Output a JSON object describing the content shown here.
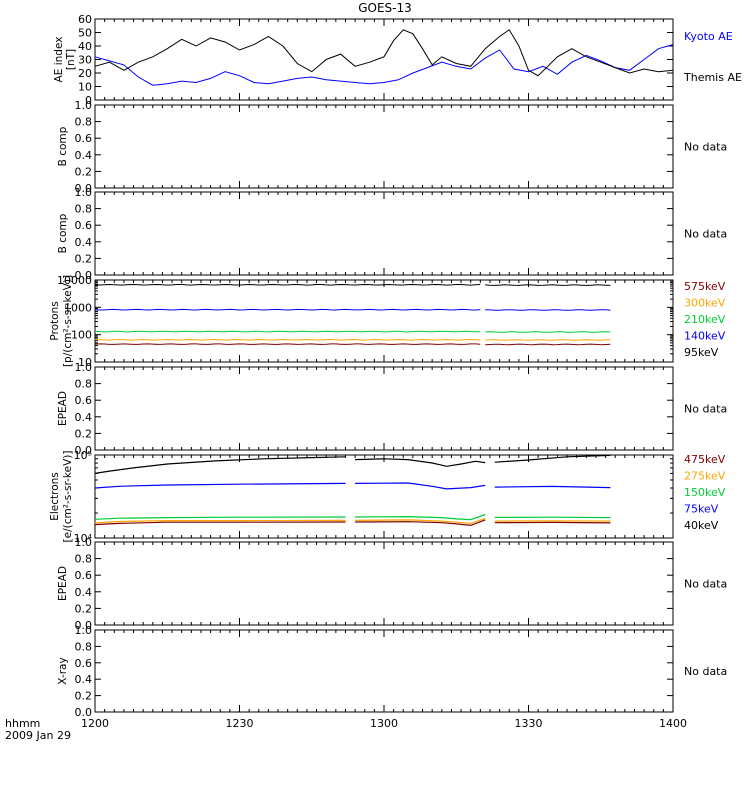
{
  "title": "GOES-13",
  "time_axis": {
    "label": "hhmm",
    "date": "2009 Jan 29",
    "ticks": [
      "1200",
      "1230",
      "1300",
      "1330",
      "1400"
    ]
  },
  "chart_data": [
    {
      "type": "line",
      "id": "ae",
      "ylabel": "AE index [nT]",
      "ylim": [
        0,
        60
      ],
      "yticks": [
        "0",
        "10",
        "20",
        "30",
        "40",
        "50",
        "60"
      ],
      "xlim": [
        0,
        120
      ],
      "series": [
        {
          "name": "Kyoto AE",
          "color": "#0000ff",
          "x": [
            0,
            3,
            6,
            9,
            12,
            15,
            18,
            21,
            24,
            27,
            30,
            33,
            36,
            39,
            42,
            45,
            48,
            51,
            54,
            57,
            60,
            63,
            66,
            69,
            72,
            75,
            78,
            81,
            84,
            87,
            90,
            93,
            96,
            99,
            102,
            105,
            108,
            111,
            114,
            117,
            120
          ],
          "y": [
            32,
            29,
            26,
            17,
            11,
            12,
            14,
            13,
            16,
            21,
            18,
            13,
            12,
            14,
            16,
            17,
            15,
            14,
            13,
            12,
            13,
            15,
            20,
            24,
            28,
            25,
            23,
            31,
            37,
            23,
            21,
            25,
            19,
            28,
            33,
            29,
            24,
            22,
            30,
            38,
            41
          ]
        },
        {
          "name": "Themis AE",
          "color": "#000000",
          "x": [
            0,
            3,
            6,
            9,
            12,
            15,
            18,
            21,
            24,
            27,
            30,
            33,
            36,
            39,
            42,
            45,
            48,
            51,
            54,
            57,
            60,
            62,
            64,
            66,
            68,
            70,
            72,
            75,
            78,
            81,
            84,
            86,
            88,
            90,
            92,
            94,
            96,
            99,
            102,
            105,
            108,
            111,
            114,
            117,
            120
          ],
          "y": [
            25,
            28,
            22,
            28,
            32,
            38,
            45,
            40,
            46,
            43,
            37,
            41,
            47,
            40,
            27,
            21,
            30,
            34,
            25,
            28,
            32,
            44,
            52,
            49,
            38,
            26,
            32,
            27,
            25,
            38,
            47,
            52,
            40,
            22,
            18,
            25,
            32,
            38,
            32,
            28,
            24,
            20,
            23,
            21,
            22
          ]
        }
      ]
    },
    {
      "type": "line",
      "id": "bcomp1",
      "ylabel": "B comp",
      "ylim": [
        0,
        1
      ],
      "yticks": [
        "0.0",
        "0.2",
        "0.4",
        "0.6",
        "0.8",
        "1.0"
      ],
      "status": "No data",
      "series": []
    },
    {
      "type": "line",
      "id": "bcomp2",
      "ylabel": "B comp",
      "ylim": [
        0,
        1
      ],
      "yticks": [
        "0.0",
        "0.2",
        "0.4",
        "0.6",
        "0.8",
        "1.0"
      ],
      "status": "No data",
      "series": []
    },
    {
      "type": "line",
      "id": "protons",
      "ylabel": "Protons [p/(cm²-s-sr-keV)]",
      "log_scale": true,
      "ylim": [
        10,
        10000
      ],
      "yticks": [
        "10",
        "100",
        "1000",
        "10000"
      ],
      "series": [
        {
          "name": "575keV",
          "color": "#800000",
          "segments": [
            [
              0,
              80,
              45
            ],
            [
              81,
              107,
              44
            ]
          ]
        },
        {
          "name": "300keV",
          "color": "#ffa500",
          "segments": [
            [
              0,
              80,
              65
            ],
            [
              81,
              107,
              64
            ]
          ]
        },
        {
          "name": "210keV",
          "color": "#00cc33",
          "segments": [
            [
              0,
              80,
              130
            ],
            [
              81,
              107,
              125
            ]
          ]
        },
        {
          "name": "140keV",
          "color": "#0000ff",
          "segments": [
            [
              0,
              80,
              820
            ],
            [
              81,
              107,
              800
            ]
          ]
        },
        {
          "name": "95keV",
          "color": "#000000",
          "segments": [
            [
              0,
              80,
              6700
            ],
            [
              81,
              107,
              6500
            ]
          ]
        }
      ]
    },
    {
      "type": "line",
      "id": "epead1",
      "ylabel": "EPEAD",
      "ylim": [
        0,
        1
      ],
      "yticks": [
        "0.0",
        "0.2",
        "0.4",
        "0.6",
        "0.8",
        "1.0"
      ],
      "status": "No data",
      "series": []
    },
    {
      "type": "line",
      "id": "electrons",
      "ylabel": "Electrons [e/(cm²-s-sr-keV)]",
      "log_scale": true,
      "ylim": [
        10000,
        100000
      ],
      "yticks": [
        "10⁴",
        "10⁵"
      ],
      "series": [
        {
          "name": "475keV",
          "color": "#800000",
          "segments": [
            [
              [
                0,
                14500
              ],
              [
                5,
                15000
              ],
              [
                15,
                15500
              ],
              [
                30,
                15500
              ],
              [
                52,
                15600
              ]
            ],
            [
              [
                54,
                15600
              ],
              [
                65,
                15700
              ],
              [
                72,
                15300
              ],
              [
                75,
                14800
              ],
              [
                78,
                14200
              ],
              [
                81,
                16500
              ]
            ],
            [
              [
                83,
                15300
              ],
              [
                95,
                15400
              ],
              [
                107,
                15200
              ]
            ]
          ]
        },
        {
          "name": "275keV",
          "color": "#ffa500",
          "segments": [
            [
              [
                0,
                15200
              ],
              [
                5,
                15800
              ],
              [
                15,
                16200
              ],
              [
                30,
                16200
              ],
              [
                52,
                16300
              ]
            ],
            [
              [
                54,
                16300
              ],
              [
                65,
                16500
              ],
              [
                72,
                16000
              ],
              [
                75,
                15500
              ],
              [
                78,
                15000
              ],
              [
                81,
                17200
              ]
            ],
            [
              [
                83,
                16000
              ],
              [
                95,
                16100
              ],
              [
                107,
                16000
              ]
            ]
          ]
        },
        {
          "name": "150keV",
          "color": "#00cc33",
          "segments": [
            [
              [
                0,
                16800
              ],
              [
                5,
                17300
              ],
              [
                15,
                17600
              ],
              [
                30,
                17800
              ],
              [
                52,
                17900
              ]
            ],
            [
              [
                54,
                17900
              ],
              [
                65,
                18100
              ],
              [
                72,
                17600
              ],
              [
                75,
                17000
              ],
              [
                78,
                16600
              ],
              [
                81,
                19200
              ]
            ],
            [
              [
                83,
                17700
              ],
              [
                95,
                17800
              ],
              [
                107,
                17600
              ]
            ]
          ]
        },
        {
          "name": "75keV",
          "color": "#0000ff",
          "segments": [
            [
              [
                0,
                40000
              ],
              [
                5,
                42000
              ],
              [
                15,
                43500
              ],
              [
                30,
                44500
              ],
              [
                52,
                45500
              ]
            ],
            [
              [
                54,
                45500
              ],
              [
                65,
                46000
              ],
              [
                70,
                42000
              ],
              [
                73,
                39000
              ],
              [
                78,
                40500
              ],
              [
                81,
                43000
              ]
            ],
            [
              [
                83,
                41000
              ],
              [
                95,
                41800
              ],
              [
                107,
                40500
              ]
            ]
          ]
        },
        {
          "name": "40keV",
          "color": "#000000",
          "segments": [
            [
              [
                0,
                60000
              ],
              [
                3,
                64000
              ],
              [
                8,
                70000
              ],
              [
                15,
                78000
              ],
              [
                25,
                85000
              ],
              [
                35,
                90000
              ],
              [
                45,
                93000
              ],
              [
                52,
                95000
              ]
            ],
            [
              [
                54,
                88000
              ],
              [
                60,
                90000
              ],
              [
                65,
                88000
              ],
              [
                70,
                80000
              ],
              [
                73,
                73000
              ],
              [
                76,
                78000
              ],
              [
                79,
                84000
              ],
              [
                81,
                81000
              ]
            ],
            [
              [
                83,
                82000
              ],
              [
                90,
                87000
              ],
              [
                98,
                95000
              ],
              [
                107,
                99000
              ]
            ]
          ]
        }
      ]
    },
    {
      "type": "line",
      "id": "epead2",
      "ylabel": "EPEAD",
      "ylim": [
        0,
        1
      ],
      "yticks": [
        "0.0",
        "0.2",
        "0.4",
        "0.6",
        "0.8",
        "1.0"
      ],
      "status": "No data",
      "series": []
    },
    {
      "type": "line",
      "id": "xray",
      "ylabel": "X-ray",
      "ylim": [
        0,
        1
      ],
      "yticks": [
        "0.0",
        "0.2",
        "0.4",
        "0.6",
        "0.8",
        "1.0"
      ],
      "status": "No data",
      "series": []
    }
  ]
}
